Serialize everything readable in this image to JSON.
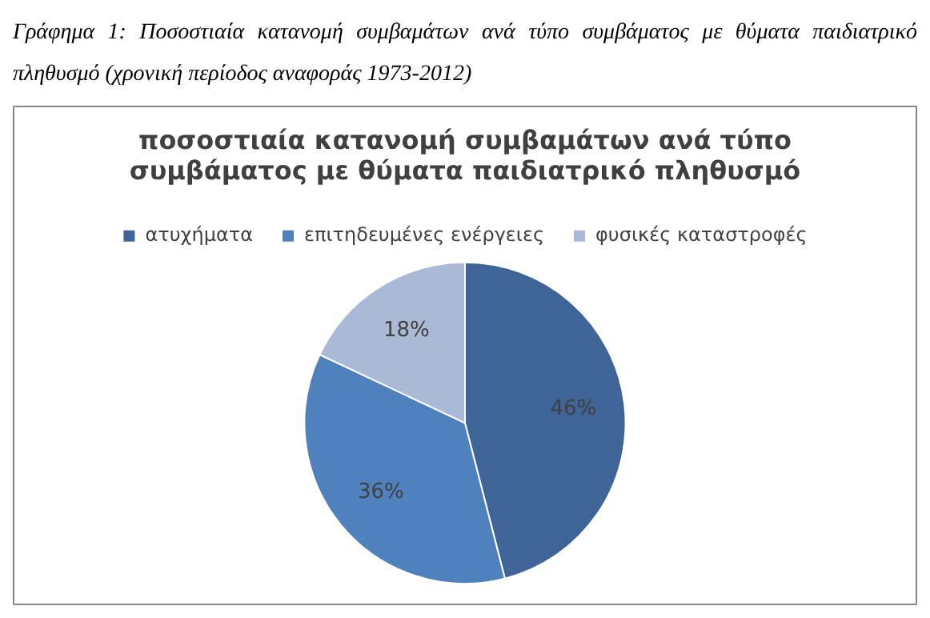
{
  "chart_data": {
    "type": "pie",
    "title": "ποσοστιαία κατανομή συμβαμάτων ανά τύπο συμβάματος με θύματα παιδιατρικό πληθυσμό",
    "categories": [
      "ατυχήματα",
      "επιτηδευμένες ενέργειες",
      "φυσικές καταστροφές"
    ],
    "values": [
      46,
      36,
      18
    ],
    "colors": [
      "#3e6498",
      "#4f81bd",
      "#a9b9d6"
    ],
    "value_labels": [
      "46%",
      "36%",
      "18%"
    ],
    "legend": "top",
    "annotations": [
      "Γράφημα 1: Ποσοστιαία κατανομή συμβαμάτων ανά τύπο συμβάματος με θύματα παιδιατρικό πληθυσμό  (χρονική περίοδος αναφοράς 1973-2012)"
    ]
  }
}
